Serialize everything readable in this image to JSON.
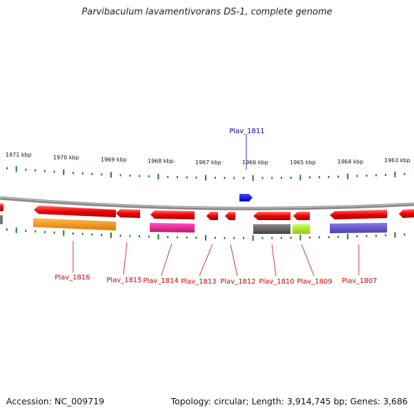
{
  "title": "Parvibaculum lavamentivorans DS-1, complete genome",
  "footer": {
    "accession": "Accession: NC_009719",
    "summary": "Topology: circular; Length: 3,914,745 bp; Genes: 3,686"
  },
  "kbp_labels": [
    "1971 kbp",
    "1970 kbp",
    "1969 kbp",
    "1968 kbp",
    "1967 kbp",
    "1966 kbp",
    "1965 kbp",
    "1964 kbp",
    "1963 kbp"
  ],
  "genes_top_label": "Plav_1811",
  "gene_labels": [
    "Plav_1816",
    "Plav_1815",
    "Plav_1814",
    "Plav_1813",
    "Plav_1812",
    "Plav_1810",
    "Plav_1809",
    "Plav_1807"
  ],
  "colors": {
    "forward_gene": "#0000ee",
    "reverse_gene": "#ee0000",
    "label_red": "#cc0000",
    "label_blue": "#0000bb",
    "backbone": "#8a8a8a",
    "tick": "#1a7a1a",
    "orange": "#ff9900",
    "magenta": "#ee2299",
    "gray": "#666666",
    "lime": "#aaee22",
    "purple": "#6a55cc"
  }
}
